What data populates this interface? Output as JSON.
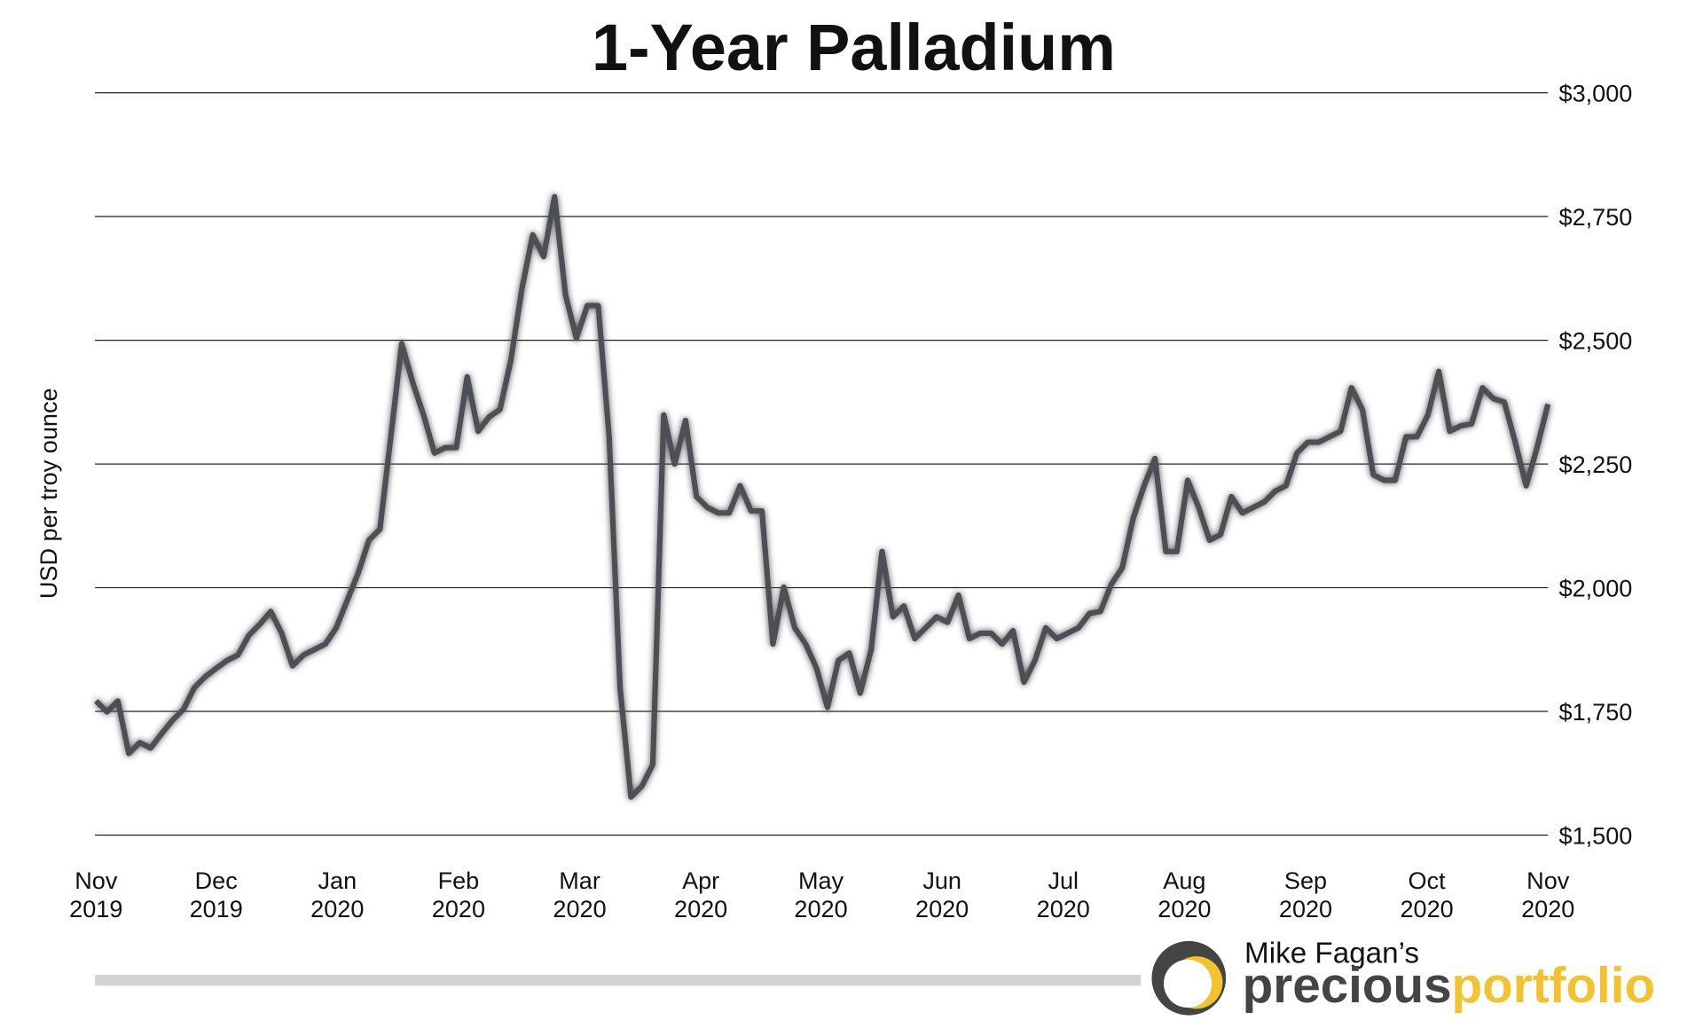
{
  "chart_data": {
    "type": "line",
    "title": "1-Year Palladium",
    "ylabel": "USD per troy ounce",
    "color": "#4d5054",
    "grid": true,
    "y_axis_side": "right",
    "values": [
      1771,
      1749,
      1771,
      1665,
      1687,
      1676,
      1705,
      1732,
      1754,
      1798,
      1820,
      1837,
      1853,
      1864,
      1904,
      1926,
      1952,
      1908,
      1842,
      1864,
      1875,
      1886,
      1919,
      1974,
      2029,
      2096,
      2118,
      2305,
      2493,
      2415,
      2349,
      2272,
      2283,
      2283,
      2426,
      2316,
      2345,
      2360,
      2460,
      2603,
      2713,
      2669,
      2790,
      2592,
      2504,
      2570,
      2570,
      2305,
      1798,
      1577,
      1599,
      1643,
      2349,
      2250,
      2338,
      2184,
      2162,
      2151,
      2151,
      2206,
      2155,
      2155,
      1886,
      2001,
      1919,
      1886,
      1837,
      1758,
      1853,
      1868,
      1787,
      1875,
      2073,
      1941,
      1963,
      1897,
      1919,
      1941,
      1930,
      1985,
      1897,
      1908,
      1908,
      1886,
      1913,
      1809,
      1853,
      1919,
      1897,
      1908,
      1919,
      1948,
      1952,
      2007,
      2040,
      2140,
      2206,
      2261,
      2073,
      2073,
      2217,
      2162,
      2096,
      2107,
      2184,
      2151,
      2162,
      2173,
      2195,
      2206,
      2272,
      2294,
      2294,
      2305,
      2316,
      2404,
      2360,
      2228,
      2217,
      2217,
      2305,
      2305,
      2349,
      2437,
      2316,
      2327,
      2331,
      2404,
      2382,
      2375,
      2294,
      2206,
      2283,
      2371
    ],
    "xlim": [
      0,
      133
    ],
    "xticks": [
      {
        "value": 0,
        "label": "Nov 2019"
      },
      {
        "value": 11,
        "label": "Dec 2019"
      },
      {
        "value": 22.1,
        "label": "Jan 2020"
      },
      {
        "value": 33.2,
        "label": "Feb 2020"
      },
      {
        "value": 44.3,
        "label": "Mar 2020"
      },
      {
        "value": 55.4,
        "label": "Apr 2020"
      },
      {
        "value": 66.4,
        "label": "May 2020"
      },
      {
        "value": 77.5,
        "label": "Jun 2020"
      },
      {
        "value": 88.6,
        "label": "Jul 2020"
      },
      {
        "value": 99.7,
        "label": "Aug 2020"
      },
      {
        "value": 110.8,
        "label": "Sep 2020"
      },
      {
        "value": 121.9,
        "label": "Oct 2020"
      },
      {
        "value": 133,
        "label": "Nov 2020"
      }
    ],
    "ylim": [
      1500,
      3000
    ],
    "yticks": [
      {
        "value": 1500,
        "label": "$1,500"
      },
      {
        "value": 1750,
        "label": "$1,750"
      },
      {
        "value": 2000,
        "label": "$2,000"
      },
      {
        "value": 2250,
        "label": "$2,250"
      },
      {
        "value": 2500,
        "label": "$2,500"
      },
      {
        "value": 2750,
        "label": "$2,750"
      },
      {
        "value": 3000,
        "label": "$3,000"
      }
    ]
  },
  "logo": {
    "tagline": "Mike Fagan’s",
    "name_1": "precious",
    "name_2": "portfolio"
  }
}
